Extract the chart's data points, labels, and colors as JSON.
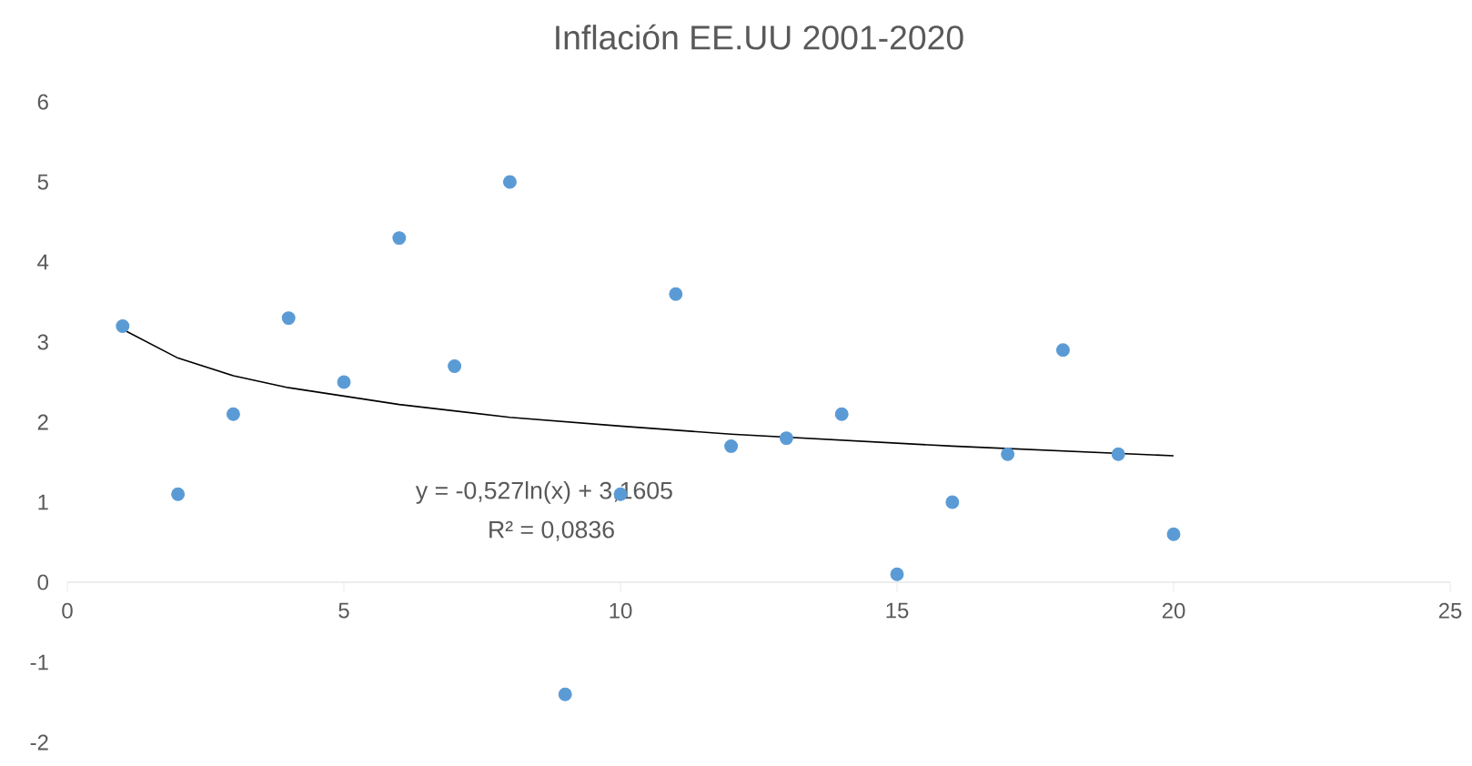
{
  "chart_data": {
    "type": "scatter",
    "title": "Inflación EE.UU 2001-2020",
    "series": [
      {
        "color": "#5b9bd5",
        "marker": "circle",
        "x": [
          1,
          2,
          3,
          4,
          5,
          6,
          7,
          8,
          9,
          10,
          11,
          12,
          13,
          14,
          15,
          16,
          17,
          18,
          19,
          20
        ],
        "values": [
          3.2,
          1.1,
          2.1,
          3.3,
          2.5,
          4.3,
          2.7,
          5.0,
          -1.4,
          1.1,
          3.6,
          1.7,
          1.8,
          2.1,
          0.1,
          1.0,
          1.6,
          2.9,
          1.6,
          0.6
        ]
      },
      {
        "type": "line",
        "color": "#000000",
        "marker": "none",
        "x": [
          1,
          2,
          3,
          4,
          6,
          8,
          10,
          12,
          16,
          20
        ],
        "values": [
          3.16,
          2.8,
          2.58,
          2.43,
          2.22,
          2.06,
          1.95,
          1.85,
          1.7,
          1.58
        ]
      }
    ],
    "annotations": [
      "y = -0,527ln(x) + 3,1605",
      "R² = 0,0836"
    ],
    "xlim": [
      0,
      25
    ],
    "xticks": [
      0,
      5,
      10,
      15,
      20,
      25
    ],
    "ylim": [
      -2,
      6
    ],
    "yticks": [
      -2,
      -1,
      0,
      1,
      2,
      3,
      4,
      5,
      6
    ],
    "grid": false
  }
}
